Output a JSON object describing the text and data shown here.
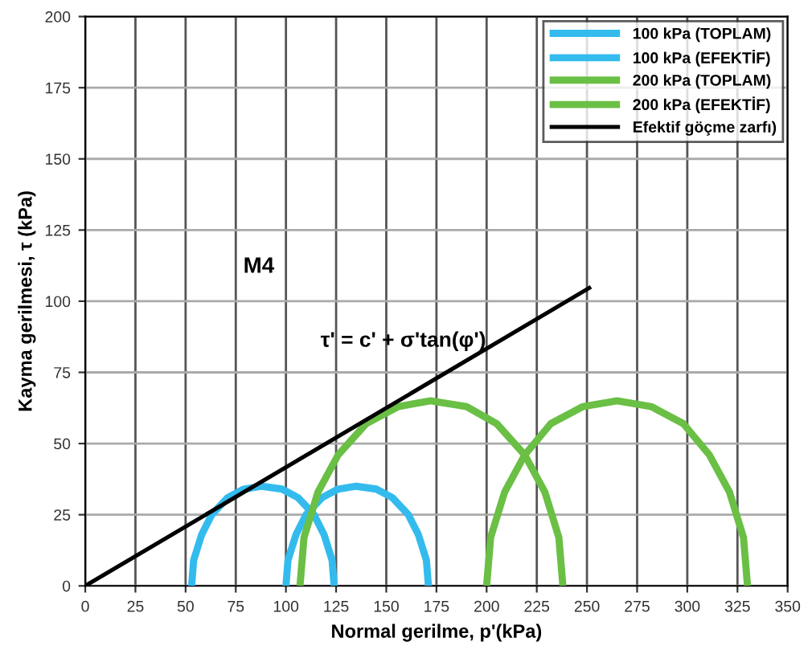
{
  "chart_data": {
    "type": "line",
    "xlabel": "Normal gerilme, p'(kPa)",
    "ylabel": "Kayma gerilmesi, τ (kPa)",
    "series": [
      {
        "name": "100 kPa (TOPLAM)",
        "color": "#33bbee",
        "x": [
          53,
          54,
          58,
          63,
          71,
          79,
          88,
          98,
          106,
          114,
          119,
          123,
          124
        ],
        "values": [
          0,
          9,
          18,
          25,
          31,
          34,
          35,
          34,
          31,
          25,
          18,
          9,
          0
        ]
      },
      {
        "name": "100 kPa (EFEKTİF)",
        "color": "#33bbee",
        "x": [
          100,
          101,
          105,
          110,
          118,
          126,
          135,
          145,
          153,
          161,
          166,
          170,
          171
        ],
        "values": [
          0,
          9,
          18,
          25,
          31,
          34,
          35,
          34,
          31,
          25,
          18,
          9,
          0
        ]
      },
      {
        "name": "200 kPa (TOPLAM)",
        "color": "#6abf45",
        "x": [
          107,
          109,
          116,
          126,
          140,
          156,
          172,
          190,
          205,
          219,
          229,
          236,
          238
        ],
        "values": [
          0,
          17,
          33,
          46,
          57,
          63,
          65,
          63,
          57,
          46,
          33,
          17,
          0
        ]
      },
      {
        "name": "200 kPa (EFEKTİF)",
        "color": "#6abf45",
        "x": [
          200,
          202,
          209,
          219,
          232,
          248,
          265,
          282,
          298,
          311,
          321,
          328,
          330
        ],
        "values": [
          0,
          17,
          33,
          46,
          57,
          63,
          65,
          63,
          57,
          46,
          33,
          17,
          0
        ]
      },
      {
        "name": "Efektif göçme zarfı)",
        "color": "#000000",
        "x": [
          0,
          252
        ],
        "values": [
          0,
          105
        ]
      }
    ],
    "annotations": [
      "M4",
      "τ' = c' + σ'tan(φ')"
    ],
    "xlim": [
      0,
      350
    ],
    "xticks": [
      0,
      25,
      50,
      75,
      100,
      125,
      150,
      175,
      200,
      225,
      250,
      275,
      300,
      325,
      350
    ],
    "ylim": [
      0,
      200
    ],
    "yticks": [
      0,
      25,
      50,
      75,
      100,
      125,
      150,
      175,
      200
    ],
    "grid": true,
    "legend": "top right",
    "line_style": "solid",
    "marker": "none"
  }
}
